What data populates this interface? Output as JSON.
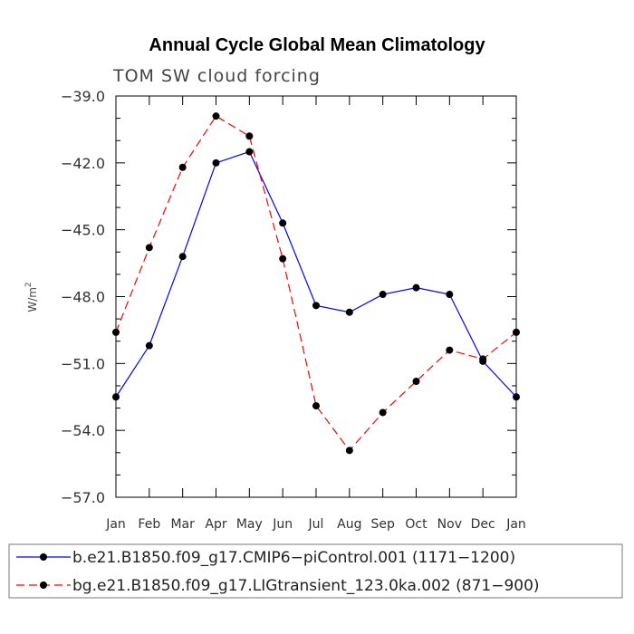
{
  "chart_data": {
    "type": "line",
    "title": "Annual Cycle Global Mean Climatology",
    "subtitle": "TOM SW cloud forcing",
    "ylabel_main": "W/m",
    "ylabel_sup": "2",
    "xlabel": "",
    "categories": [
      "Jan",
      "Feb",
      "Mar",
      "Apr",
      "May",
      "Jun",
      "Jul",
      "Aug",
      "Sep",
      "Oct",
      "Nov",
      "Dec",
      "Jan"
    ],
    "ylim": [
      -57.0,
      -39.0
    ],
    "yticks": [
      -39.0,
      -42.0,
      -45.0,
      -48.0,
      -51.0,
      -54.0,
      -57.0
    ],
    "ytick_labels": [
      "−39.0",
      "−42.0",
      "−45.0",
      "−48.0",
      "−51.0",
      "−54.0",
      "−57.0"
    ],
    "series": [
      {
        "name": "b.e21.B1850.f09_g17.CMIP6−piControl.001 (1171−1200)",
        "color": "#0000ff",
        "dash": "solid",
        "values": [
          -52.5,
          -50.2,
          -46.2,
          -42.0,
          -41.5,
          -44.7,
          -48.4,
          -48.7,
          -47.9,
          -47.6,
          -47.9,
          -50.9,
          -52.5
        ]
      },
      {
        "name": "bg.e21.B1850.f09_g17.LIGtransient_123.0ka.002 (871−900)",
        "color": "#ff0000",
        "dash": "dashed",
        "values": [
          -49.6,
          -45.8,
          -42.2,
          -39.9,
          -40.8,
          -46.3,
          -52.9,
          -54.9,
          -53.2,
          -51.8,
          -50.4,
          -50.8,
          -49.6
        ]
      }
    ]
  }
}
